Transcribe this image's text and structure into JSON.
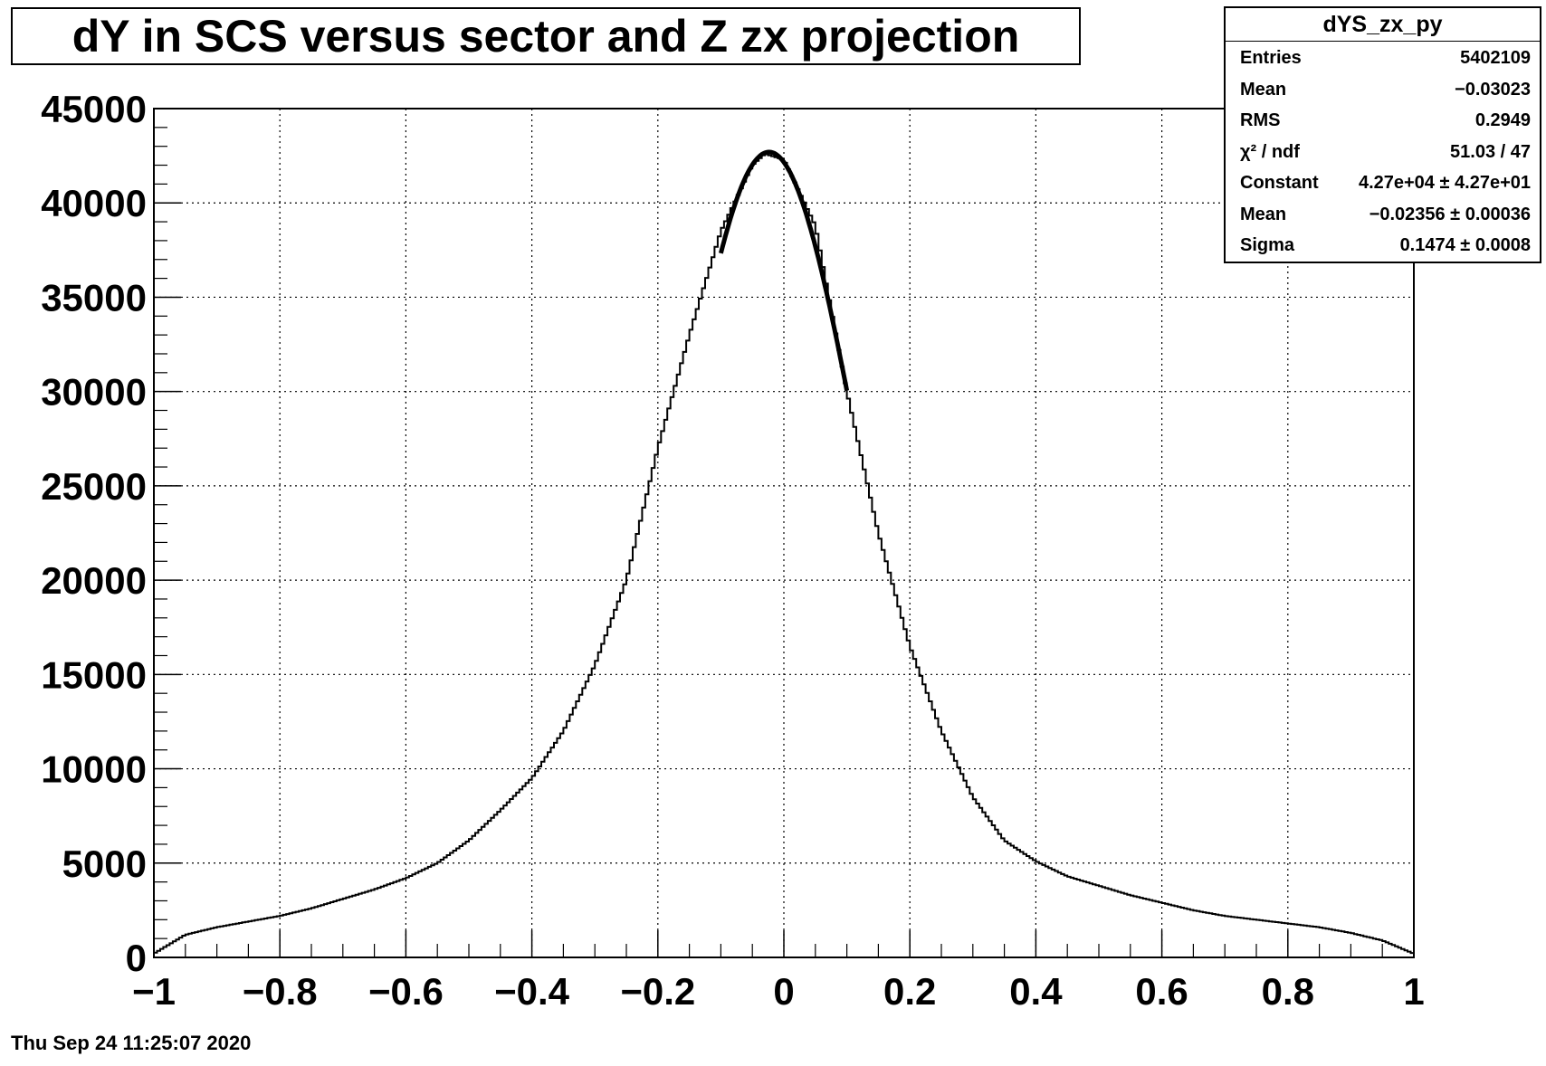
{
  "title": "dY in SCS versus sector and Z zx projection",
  "timestamp": "Thu Sep 24 11:25:07 2020",
  "stats": {
    "name": "dYS_zx_py",
    "rows": [
      {
        "label": "Entries",
        "value": "5402109"
      },
      {
        "label": "Mean",
        "value": "−0.03023"
      },
      {
        "label": "RMS",
        "value": "0.2949"
      },
      {
        "label": "χ² / ndf",
        "value": "51.03 / 47"
      },
      {
        "label": "Constant",
        "value": "4.27e+04 ± 4.27e+01"
      },
      {
        "label": "Mean",
        "value": "−0.02356 ± 0.00036"
      },
      {
        "label": "Sigma",
        "value": "0.1474 ± 0.0008"
      }
    ]
  },
  "chart_data": {
    "type": "line",
    "title": "dY in SCS versus sector and Z zx projection",
    "xlabel": "",
    "ylabel": "",
    "xlim": [
      -1,
      1
    ],
    "ylim": [
      0,
      45000
    ],
    "grid": true,
    "x_ticks": [
      -1,
      -0.8,
      -0.6,
      -0.4,
      -0.2,
      0,
      0.2,
      0.4,
      0.6,
      0.8,
      1
    ],
    "x_tick_labels": [
      "−1",
      "−0.8",
      "−0.6",
      "−0.4",
      "−0.2",
      "0",
      "0.2",
      "0.4",
      "0.6",
      "0.8",
      "1"
    ],
    "y_ticks": [
      0,
      5000,
      10000,
      15000,
      20000,
      25000,
      30000,
      35000,
      40000,
      45000
    ],
    "y_tick_labels": [
      "0",
      "5000",
      "10000",
      "15000",
      "20000",
      "25000",
      "30000",
      "35000",
      "40000",
      "45000"
    ],
    "series": [
      {
        "x": [
          -1.0,
          -0.95,
          -0.9,
          -0.85,
          -0.8,
          -0.75,
          -0.7,
          -0.65,
          -0.6,
          -0.55,
          -0.5,
          -0.45,
          -0.4,
          -0.35,
          -0.3,
          -0.25,
          -0.2,
          -0.15,
          -0.1,
          -0.05,
          -0.03,
          0.0,
          0.05,
          0.1,
          0.15,
          0.2,
          0.25,
          0.3,
          0.35,
          0.4,
          0.45,
          0.5,
          0.55,
          0.6,
          0.65,
          0.7,
          0.75,
          0.8,
          0.85,
          0.9,
          0.95,
          1.0
        ],
        "y": [
          200,
          1200,
          1600,
          1900,
          2200,
          2600,
          3100,
          3600,
          4200,
          5000,
          6200,
          7800,
          9500,
          12000,
          15500,
          20000,
          27000,
          33000,
          38500,
          42000,
          42600,
          42300,
          38800,
          30000,
          22500,
          16500,
          12000,
          8500,
          6200,
          5100,
          4300,
          3800,
          3300,
          2900,
          2500,
          2200,
          2000,
          1800,
          1600,
          1300,
          900,
          200
        ]
      }
    ],
    "fit": {
      "constant": 42700,
      "mean": -0.02356,
      "sigma": 0.1474,
      "range": [
        -0.1,
        0.1
      ]
    }
  }
}
